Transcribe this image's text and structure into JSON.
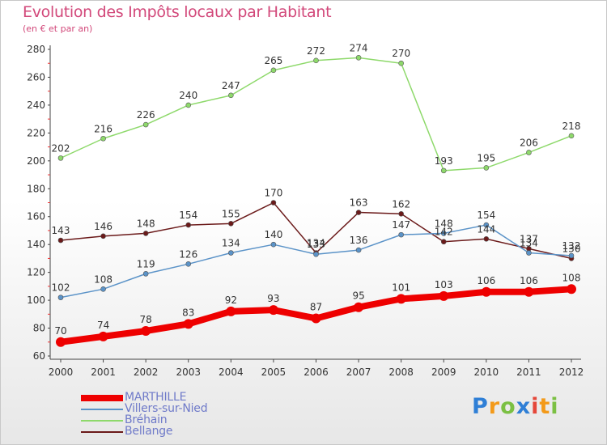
{
  "title": "Evolution des Impôts locaux par Habitant",
  "subtitle": "(en € et par an)",
  "logo": {
    "letters": [
      "P",
      "r",
      "o",
      "x",
      "i",
      "t",
      "i"
    ],
    "colors": [
      "#2f7fd6",
      "#f39a1a",
      "#7bc043",
      "#2f7fd6",
      "#e5473a",
      "#f39a1a",
      "#7bc043"
    ]
  },
  "chart_data": {
    "type": "line",
    "title": "Evolution des Impôts locaux par Habitant",
    "subtitle": "(en € et par an)",
    "x": [
      2000,
      2001,
      2002,
      2003,
      2004,
      2005,
      2006,
      2007,
      2008,
      2009,
      2010,
      2011,
      2012
    ],
    "ylim": [
      60,
      280
    ],
    "yticks": [
      60,
      80,
      100,
      120,
      140,
      160,
      180,
      200,
      220,
      240,
      260,
      280
    ],
    "grid": false,
    "legend_position": "bottom-left",
    "series": [
      {
        "name": "MARTHILLE",
        "color": "#ee0000",
        "values": [
          70,
          74,
          78,
          83,
          92,
          93,
          87,
          95,
          101,
          103,
          106,
          106,
          108
        ]
      },
      {
        "name": "Villers-sur-Nied",
        "color": "#5b93c8",
        "values": [
          102,
          108,
          119,
          126,
          134,
          140,
          133,
          136,
          147,
          148,
          154,
          134,
          132
        ]
      },
      {
        "name": "Bréhain",
        "color": "#8ed96b",
        "values": [
          202,
          216,
          226,
          240,
          247,
          265,
          272,
          274,
          270,
          193,
          195,
          206,
          218
        ]
      },
      {
        "name": "Bellange",
        "color": "#6b1a1a",
        "values": [
          143,
          146,
          148,
          154,
          155,
          170,
          134,
          163,
          162,
          142,
          144,
          137,
          130
        ]
      }
    ]
  }
}
